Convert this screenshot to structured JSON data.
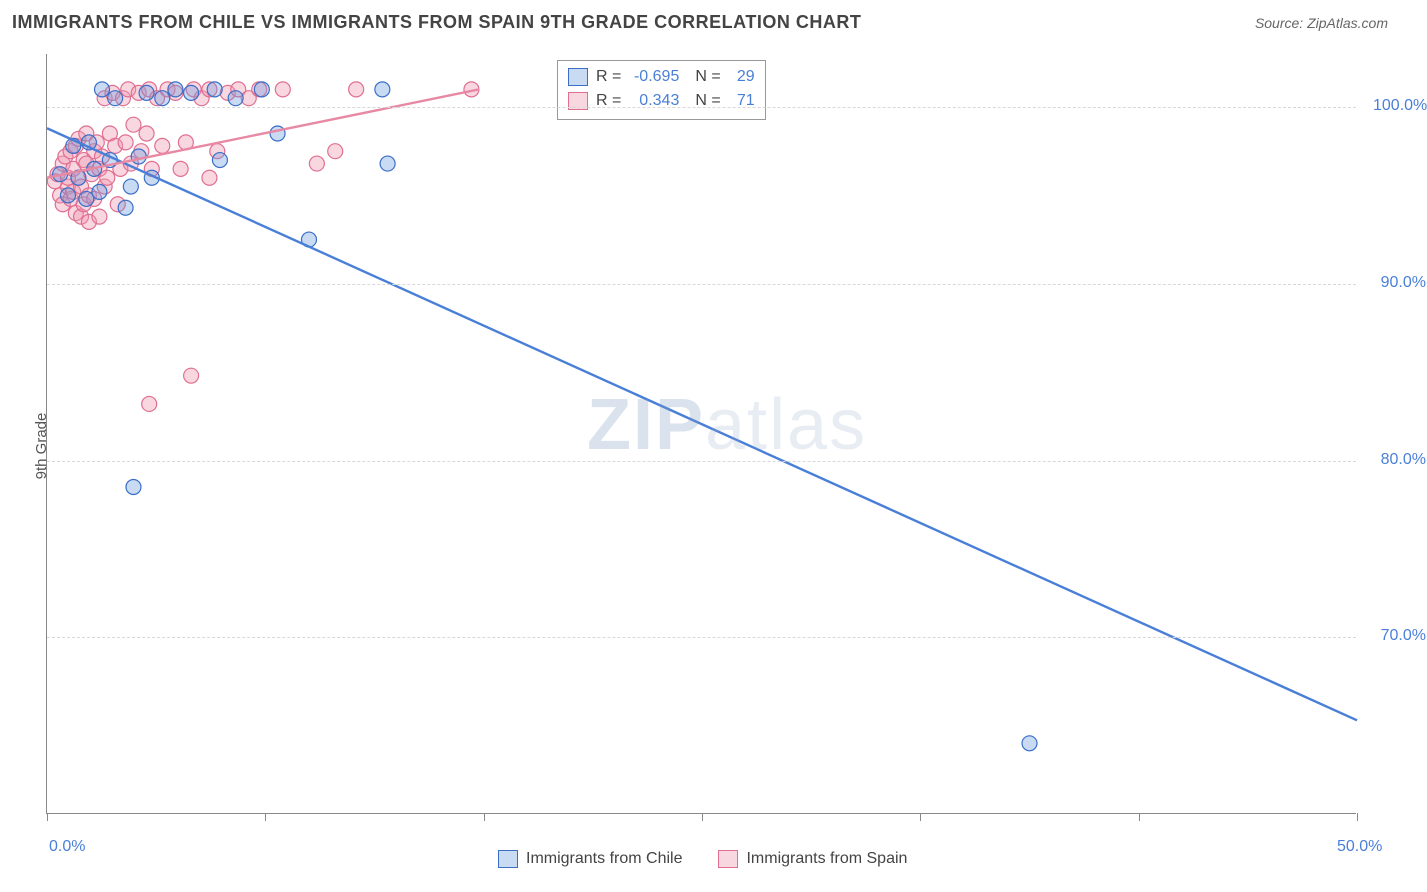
{
  "header": {
    "title": "IMMIGRANTS FROM CHILE VS IMMIGRANTS FROM SPAIN 9TH GRADE CORRELATION CHART",
    "source": "Source: ZipAtlas.com"
  },
  "chart": {
    "type": "scatter",
    "y_axis_title": "9th Grade",
    "xlim": [
      0,
      50
    ],
    "ylim": [
      60,
      103
    ],
    "x_ticks": [
      0,
      8.33,
      16.67,
      25,
      33.33,
      41.67,
      50
    ],
    "x_tick_labels": {
      "0": "0.0%",
      "50": "50.0%"
    },
    "y_ticks": [
      70,
      80,
      90,
      100
    ],
    "y_tick_labels": [
      "70.0%",
      "80.0%",
      "90.0%",
      "100.0%"
    ],
    "grid_color": "#d8d8d8",
    "axis_color": "#888888",
    "background_color": "#ffffff",
    "tick_label_color": "#4a7fd8",
    "tick_label_fontsize": 16,
    "title_fontsize": 18,
    "marker_radius": 7.5,
    "marker_fill_opacity": 0.35,
    "marker_stroke_width": 1.2,
    "trend_line_width": 2.4,
    "watermark": {
      "text_bold": "ZIP",
      "text_light": "atlas",
      "fontsize": 72
    }
  },
  "series": [
    {
      "name": "Immigrants from Chile",
      "color": "#4a7fd8",
      "fill": "rgba(100,150,220,0.35)",
      "stroke": "#3a6fc8",
      "r_value": "-0.695",
      "n_value": "29",
      "trend": {
        "x1": 0,
        "y1": 98.8,
        "x2": 50,
        "y2": 65.3
      },
      "points": [
        [
          0.5,
          96.2
        ],
        [
          0.8,
          95.0
        ],
        [
          1.0,
          97.8
        ],
        [
          1.2,
          96.0
        ],
        [
          1.5,
          94.8
        ],
        [
          1.6,
          98.0
        ],
        [
          1.8,
          96.5
        ],
        [
          2.0,
          95.2
        ],
        [
          2.1,
          101.0
        ],
        [
          2.4,
          97.0
        ],
        [
          2.6,
          100.5
        ],
        [
          3.0,
          94.3
        ],
        [
          3.2,
          95.5
        ],
        [
          3.5,
          97.2
        ],
        [
          3.8,
          100.8
        ],
        [
          4.0,
          96.0
        ],
        [
          4.4,
          100.5
        ],
        [
          4.9,
          101.0
        ],
        [
          5.5,
          100.8
        ],
        [
          6.4,
          101.0
        ],
        [
          6.6,
          97.0
        ],
        [
          7.2,
          100.5
        ],
        [
          8.2,
          101.0
        ],
        [
          8.8,
          98.5
        ],
        [
          10.0,
          92.5
        ],
        [
          13.0,
          96.8
        ],
        [
          12.8,
          101.0
        ],
        [
          3.3,
          78.5
        ],
        [
          37.5,
          64.0
        ]
      ]
    },
    {
      "name": "Immigrants from Spain",
      "color": "#e889a4",
      "fill": "rgba(240,150,175,0.38)",
      "stroke": "#e06f90",
      "r_value": "0.343",
      "n_value": "71",
      "trend": {
        "x1": 0,
        "y1": 96.0,
        "x2": 16.5,
        "y2": 101.0
      },
      "points": [
        [
          0.3,
          95.8
        ],
        [
          0.4,
          96.2
        ],
        [
          0.5,
          95.0
        ],
        [
          0.6,
          96.8
        ],
        [
          0.6,
          94.5
        ],
        [
          0.7,
          97.2
        ],
        [
          0.8,
          95.5
        ],
        [
          0.8,
          96.0
        ],
        [
          0.9,
          97.5
        ],
        [
          0.9,
          94.8
        ],
        [
          1.0,
          96.5
        ],
        [
          1.0,
          95.2
        ],
        [
          1.1,
          97.8
        ],
        [
          1.1,
          94.0
        ],
        [
          1.2,
          98.2
        ],
        [
          1.2,
          96.0
        ],
        [
          1.3,
          95.5
        ],
        [
          1.3,
          93.8
        ],
        [
          1.4,
          97.0
        ],
        [
          1.4,
          94.5
        ],
        [
          1.5,
          96.8
        ],
        [
          1.5,
          98.5
        ],
        [
          1.6,
          95.0
        ],
        [
          1.6,
          93.5
        ],
        [
          1.7,
          96.2
        ],
        [
          1.8,
          97.5
        ],
        [
          1.8,
          94.8
        ],
        [
          1.9,
          98.0
        ],
        [
          2.0,
          96.5
        ],
        [
          2.0,
          93.8
        ],
        [
          2.1,
          97.2
        ],
        [
          2.2,
          95.5
        ],
        [
          2.2,
          100.5
        ],
        [
          2.3,
          96.0
        ],
        [
          2.4,
          98.5
        ],
        [
          2.5,
          100.8
        ],
        [
          2.6,
          97.8
        ],
        [
          2.7,
          94.5
        ],
        [
          2.8,
          96.5
        ],
        [
          2.9,
          100.5
        ],
        [
          3.0,
          98.0
        ],
        [
          3.1,
          101.0
        ],
        [
          3.2,
          96.8
        ],
        [
          3.3,
          99.0
        ],
        [
          3.5,
          100.8
        ],
        [
          3.6,
          97.5
        ],
        [
          3.8,
          98.5
        ],
        [
          3.9,
          101.0
        ],
        [
          4.0,
          96.5
        ],
        [
          4.2,
          100.5
        ],
        [
          4.4,
          97.8
        ],
        [
          4.6,
          101.0
        ],
        [
          4.9,
          100.8
        ],
        [
          5.1,
          96.5
        ],
        [
          5.3,
          98.0
        ],
        [
          5.6,
          101.0
        ],
        [
          5.9,
          100.5
        ],
        [
          6.2,
          101.0
        ],
        [
          6.5,
          97.5
        ],
        [
          6.9,
          100.8
        ],
        [
          7.3,
          101.0
        ],
        [
          7.7,
          100.5
        ],
        [
          8.1,
          101.0
        ],
        [
          9.0,
          101.0
        ],
        [
          10.3,
          96.8
        ],
        [
          11.0,
          97.5
        ],
        [
          11.8,
          101.0
        ],
        [
          3.9,
          83.2
        ],
        [
          5.5,
          84.8
        ],
        [
          6.2,
          96.0
        ],
        [
          16.2,
          101.0
        ]
      ]
    }
  ],
  "legend_top": {
    "r_label": "R =",
    "n_label": "N ="
  },
  "legend_bottom": {
    "series1_label": "Immigrants from Chile",
    "series2_label": "Immigrants from Spain"
  }
}
